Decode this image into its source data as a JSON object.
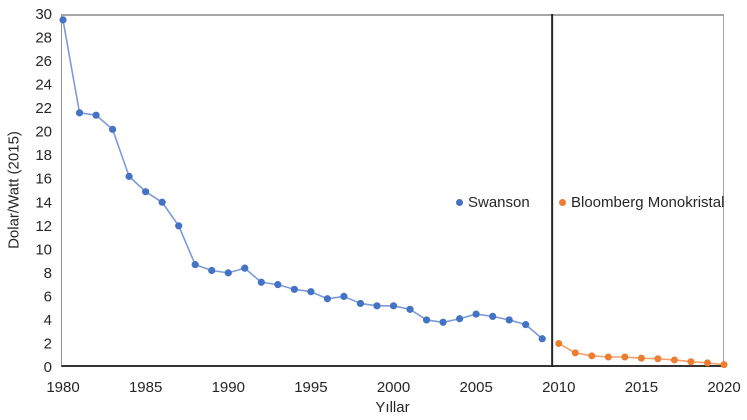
{
  "figure": {
    "y_axis_title": "Dolar/Watt (2015)",
    "x_axis_title": "Yıllar"
  },
  "legend": {
    "items": [
      {
        "label": "Swanson",
        "color": "#4472C4"
      },
      {
        "label": "Bloomberg Monokristal",
        "color": "#ED7D31"
      }
    ]
  },
  "colors": {
    "swanson_marker": "#4472C4",
    "swanson_line": "#7d9bd9",
    "bloomberg_marker": "#ED7D31",
    "bloomberg_line": "#f2a16e",
    "divider": "#262626",
    "axis_bottom": "#333333",
    "axis_border": "#a6a6a6",
    "tick_text": "#262626"
  },
  "chart_data": {
    "type": "line",
    "title": "",
    "xlabel": "Yıllar",
    "ylabel": "Dolar/Watt (2015)",
    "xlim": [
      1980,
      2020
    ],
    "ylim": [
      0,
      30
    ],
    "x_ticks": [
      1980,
      1985,
      1990,
      1995,
      2000,
      2005,
      2010,
      2015,
      2020
    ],
    "y_ticks": [
      0,
      2,
      4,
      6,
      8,
      10,
      12,
      14,
      16,
      18,
      20,
      22,
      24,
      26,
      28,
      30
    ],
    "grid": false,
    "legend_position": "inside-center",
    "divider_x": 2009.6,
    "series": [
      {
        "name": "Swanson",
        "data_name": "swanson-series",
        "color": "#4472C4",
        "line_color": "#7d9bd9",
        "marker_radius": 3.6,
        "x": [
          1980,
          1981,
          1982,
          1983,
          1984,
          1985,
          1986,
          1987,
          1988,
          1989,
          1990,
          1991,
          1992,
          1993,
          1994,
          1995,
          1996,
          1997,
          1998,
          1999,
          2000,
          2001,
          2002,
          2003,
          2004,
          2005,
          2006,
          2007,
          2008,
          2009
        ],
        "y": [
          29.5,
          21.6,
          21.4,
          20.2,
          16.2,
          14.9,
          14.0,
          12.0,
          8.7,
          8.2,
          8.0,
          8.4,
          7.2,
          7.0,
          6.6,
          6.4,
          5.8,
          6.0,
          5.4,
          5.2,
          5.2,
          4.9,
          4.0,
          3.8,
          4.1,
          4.5,
          4.3,
          4.0,
          3.6,
          2.4
        ]
      },
      {
        "name": "Bloomberg Monokristal",
        "data_name": "bloomberg-series",
        "color": "#ED7D31",
        "line_color": "#f2a16e",
        "marker_radius": 3.5,
        "x": [
          2010,
          2011,
          2012,
          2013,
          2014,
          2015,
          2016,
          2017,
          2018,
          2019,
          2020
        ],
        "y": [
          2.0,
          1.2,
          0.95,
          0.85,
          0.85,
          0.75,
          0.7,
          0.6,
          0.45,
          0.35,
          0.2
        ]
      }
    ]
  }
}
